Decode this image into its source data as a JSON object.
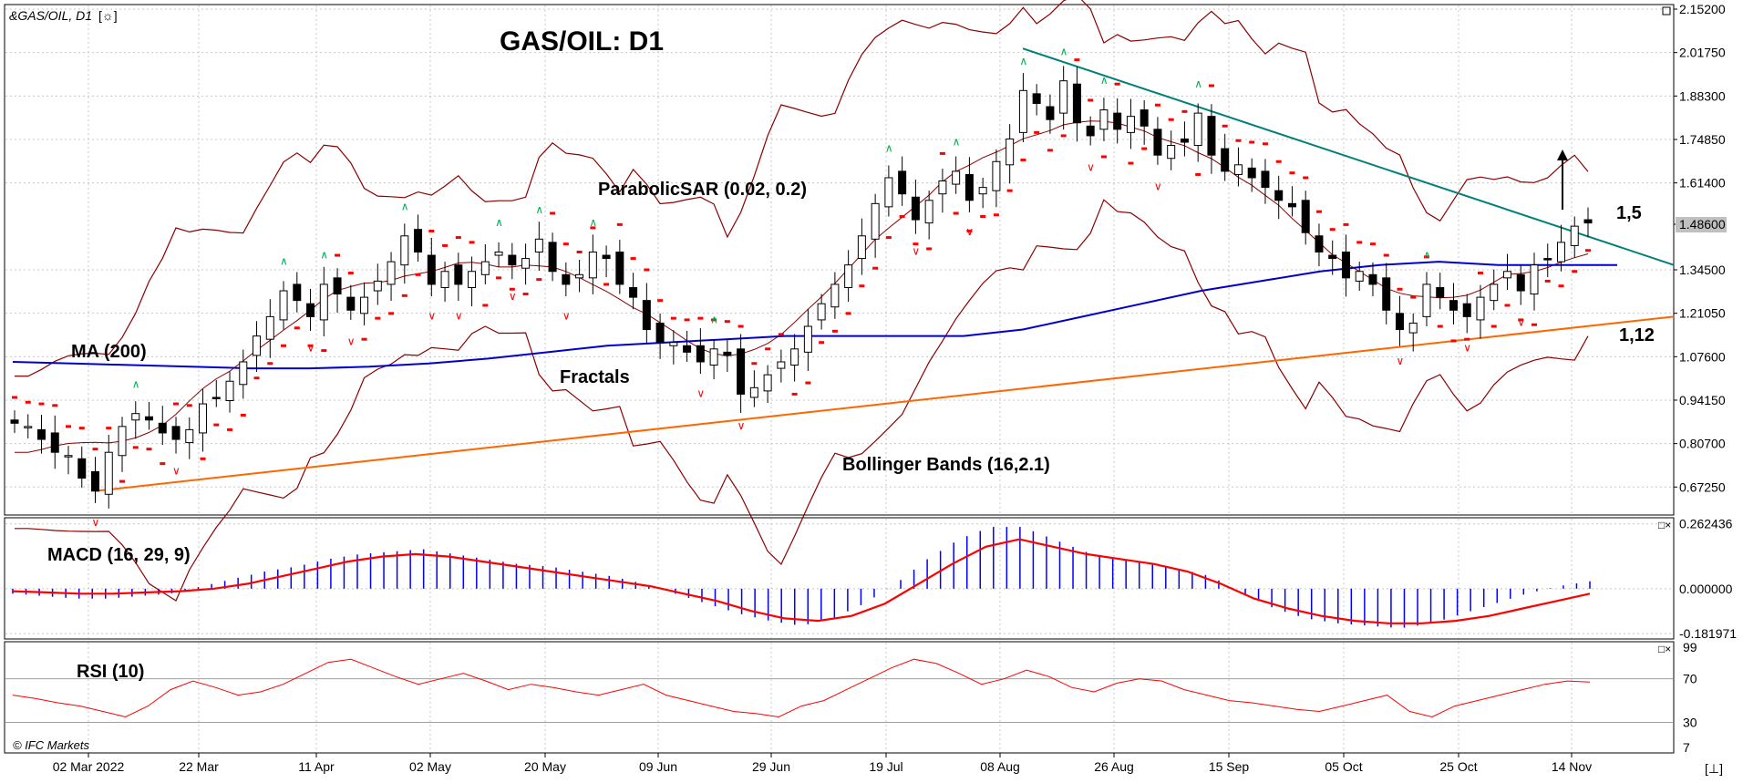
{
  "header": {
    "symbol_label": "&GAS/OIL, D1",
    "symbol_icon": "gear-icon",
    "title": "GAS/OIL: D1",
    "copyright": "© IFC Markets",
    "corner_icon": "resize-icon"
  },
  "annotations": {
    "parabolic_sar": "ParabolicSAR (0.02, 0.2)",
    "ma": "MA (200)",
    "fractals": "Fractals",
    "bollinger": "Bollinger Bands (16,2.1)",
    "level_high": "1,5",
    "level_low": "1,12",
    "macd": "MACD (16, 29, 9)",
    "rsi": "RSI (10)"
  },
  "colors": {
    "ma200": "#0000cc",
    "bollinger": "#8b0000",
    "sar": "#ff0000",
    "fractal_up": "#00b050",
    "fractal_down": "#ff0000",
    "resistance": "#00807a",
    "support": "#ff6600",
    "macd_hist": "#0000ff",
    "macd_signal": "#ff0000",
    "rsi": "#ff0000",
    "price_label_bg": "#c0c0c0"
  },
  "chart_data": [
    {
      "type": "candlestick",
      "title": "GAS/OIL: D1",
      "x_tick_labels": [
        "02 Mar 2022",
        "22 Mar",
        "11 Apr",
        "02 May",
        "20 May",
        "09 Jun",
        "29 Jun",
        "19 Jul",
        "08 Aug",
        "26 Aug",
        "15 Sep",
        "05 Oct",
        "25 Oct",
        "14 Nov"
      ],
      "y_tick_labels": [
        "2.15200",
        "2.01750",
        "1.88300",
        "1.74850",
        "1.61400",
        "1.48600",
        "1.34500",
        "1.21050",
        "1.07600",
        "0.94150",
        "0.80700",
        "0.67250"
      ],
      "ylim": [
        0.6,
        2.152
      ],
      "current_price": "1.48600",
      "close_approx": [
        0.87,
        0.86,
        0.82,
        0.78,
        0.77,
        0.7,
        0.66,
        0.78,
        0.86,
        0.9,
        0.88,
        0.84,
        0.82,
        0.85,
        0.93,
        0.95,
        1.0,
        1.06,
        1.14,
        1.2,
        1.28,
        1.25,
        1.2,
        1.3,
        1.27,
        1.22,
        1.26,
        1.31,
        1.37,
        1.45,
        1.4,
        1.3,
        1.34,
        1.3,
        1.34,
        1.37,
        1.4,
        1.36,
        1.38,
        1.44,
        1.34,
        1.3,
        1.33,
        1.4,
        1.38,
        1.3,
        1.26,
        1.16,
        1.12,
        1.12,
        1.09,
        1.06,
        1.1,
        1.08,
        0.96,
        0.98,
        1.02,
        1.06,
        1.1,
        1.17,
        1.24,
        1.3,
        1.36,
        1.45,
        1.55,
        1.63,
        1.58,
        1.5,
        1.56,
        1.62,
        1.65,
        1.56,
        1.6,
        1.68,
        1.75,
        1.9,
        1.86,
        1.81,
        1.93,
        1.8,
        1.76,
        1.84,
        1.78,
        1.82,
        1.79,
        1.7,
        1.73,
        1.74,
        1.83,
        1.7,
        1.65,
        1.67,
        1.63,
        1.6,
        1.56,
        1.54,
        1.46,
        1.4,
        1.38,
        1.32,
        1.34,
        1.3,
        1.22,
        1.16,
        1.18,
        1.3,
        1.26,
        1.22,
        1.2,
        1.26,
        1.3,
        1.34,
        1.28,
        1.36,
        1.38,
        1.43,
        1.48,
        1.49
      ]
    },
    {
      "type": "line",
      "name": "MA (200)",
      "values": [
        1.06,
        1.055,
        1.05,
        1.045,
        1.04,
        1.04,
        1.045,
        1.055,
        1.07,
        1.09,
        1.11,
        1.12,
        1.13,
        1.14,
        1.14,
        1.14,
        1.14,
        1.16,
        1.2,
        1.24,
        1.28,
        1.31,
        1.34,
        1.36,
        1.37,
        1.36,
        1.36,
        1.36
      ]
    },
    {
      "type": "line",
      "name": "Support",
      "x": [
        "02 Mar 2022",
        "end"
      ],
      "y": [
        0.66,
        1.2
      ]
    },
    {
      "type": "line",
      "name": "Resistance",
      "x": [
        "08 Aug",
        "end"
      ],
      "y": [
        2.03,
        1.36
      ]
    },
    {
      "type": "bar",
      "title": "MACD (16, 29, 9)",
      "y_tick_labels": [
        "0.262436",
        "0.000000",
        "-0.181971"
      ],
      "ylim": [
        -0.185,
        0.265
      ],
      "histogram": [
        -0.02,
        -0.03,
        -0.04,
        -0.04,
        -0.03,
        -0.02,
        0.01,
        0.04,
        0.07,
        0.09,
        0.12,
        0.14,
        0.15,
        0.16,
        0.14,
        0.12,
        0.1,
        0.09,
        0.07,
        0.05,
        0.02,
        -0.02,
        -0.06,
        -0.1,
        -0.13,
        -0.15,
        -0.12,
        -0.06,
        0.02,
        0.12,
        0.2,
        0.25,
        0.25,
        0.2,
        0.15,
        0.12,
        0.1,
        0.08,
        0.05,
        -0.02,
        -0.08,
        -0.12,
        -0.14,
        -0.15,
        -0.16,
        -0.14,
        -0.1,
        -0.06,
        -0.02,
        0.01,
        0.03
      ],
      "signal": [
        -0.01,
        -0.015,
        -0.02,
        -0.02,
        -0.015,
        -0.01,
        0.0,
        0.02,
        0.05,
        0.08,
        0.11,
        0.13,
        0.14,
        0.13,
        0.11,
        0.09,
        0.07,
        0.05,
        0.03,
        0.01,
        -0.02,
        -0.05,
        -0.09,
        -0.12,
        -0.13,
        -0.11,
        -0.06,
        0.02,
        0.1,
        0.17,
        0.2,
        0.17,
        0.14,
        0.12,
        0.1,
        0.07,
        0.02,
        -0.04,
        -0.08,
        -0.11,
        -0.13,
        -0.14,
        -0.14,
        -0.13,
        -0.11,
        -0.08,
        -0.05,
        -0.02
      ]
    },
    {
      "type": "line",
      "title": "RSI (10)",
      "y_tick_labels": [
        "99",
        "70",
        "30",
        "7"
      ],
      "ylim": [
        7,
        99
      ],
      "values": [
        55,
        52,
        48,
        45,
        40,
        35,
        45,
        60,
        68,
        62,
        55,
        58,
        65,
        75,
        85,
        88,
        80,
        72,
        65,
        70,
        75,
        68,
        60,
        65,
        62,
        58,
        55,
        60,
        65,
        55,
        50,
        45,
        40,
        38,
        35,
        45,
        50,
        60,
        70,
        80,
        88,
        84,
        75,
        65,
        70,
        78,
        72,
        62,
        58,
        66,
        70,
        68,
        60,
        55,
        50,
        48,
        45,
        42,
        40,
        45,
        50,
        55,
        40,
        35,
        45,
        50,
        55,
        60,
        65,
        68,
        67
      ]
    }
  ]
}
